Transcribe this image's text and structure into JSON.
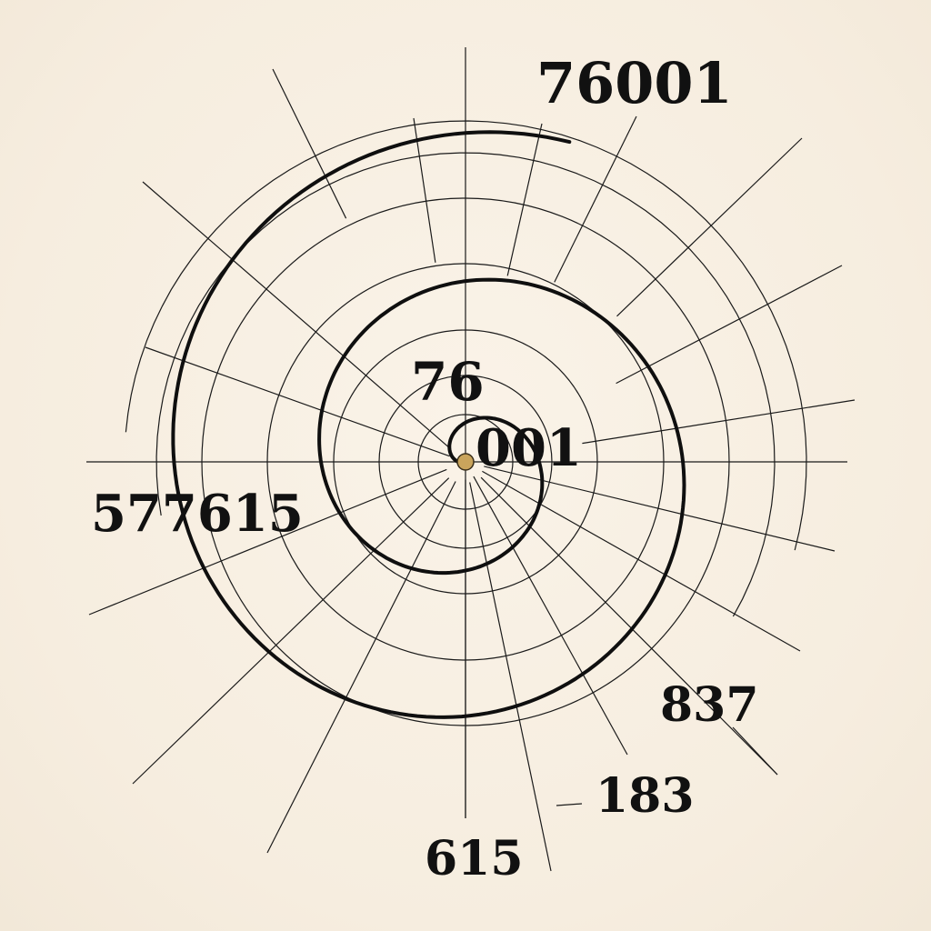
{
  "labels": {
    "top": "76001",
    "inner_upper": "76",
    "center_right": "001",
    "left": "577615",
    "lower_right_1": "837",
    "lower_right_2": "183",
    "bottom": "615"
  },
  "colors": {
    "background": "#f7efe2",
    "ink": "#111111",
    "center_dot": "#c9a45c"
  }
}
